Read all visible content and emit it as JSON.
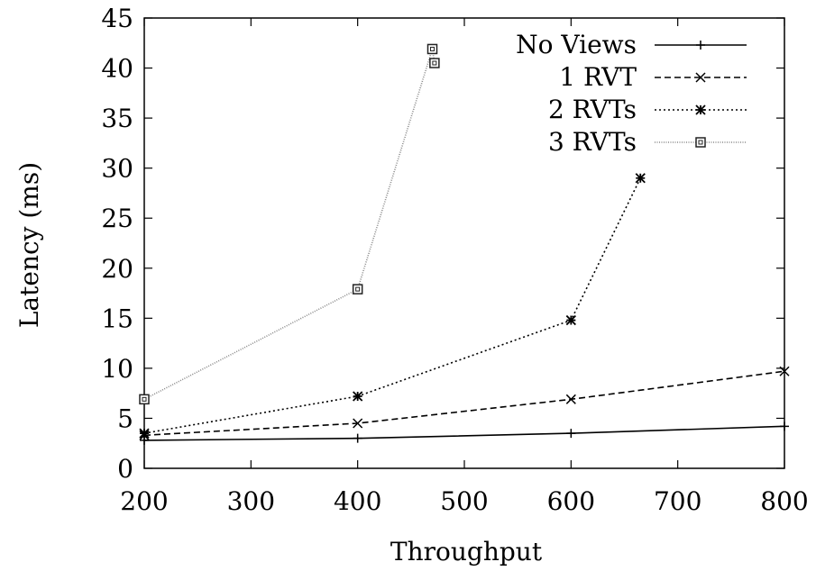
{
  "chart_data": {
    "type": "line",
    "title": "",
    "xlabel": "Throughput",
    "ylabel": "Latency (ms)",
    "xlim": [
      200,
      800
    ],
    "ylim": [
      0,
      45
    ],
    "xticks": [
      200,
      300,
      400,
      500,
      600,
      700,
      800
    ],
    "yticks": [
      0,
      5,
      10,
      15,
      20,
      25,
      30,
      35,
      40,
      45
    ],
    "grid": false,
    "legend_position": "top-right",
    "series": [
      {
        "name": "No Views",
        "marker": "plus",
        "dash": "solid",
        "color": "#000000",
        "x": [
          200,
          400,
          600,
          800
        ],
        "y": [
          2.8,
          3.0,
          3.5,
          4.2
        ]
      },
      {
        "name": "1 RVT",
        "marker": "cross",
        "dash": "dashed",
        "color": "#000000",
        "x": [
          200,
          400,
          600,
          800
        ],
        "y": [
          3.3,
          4.5,
          6.9,
          9.7
        ]
      },
      {
        "name": "2 RVTs",
        "marker": "star",
        "dash": "dotted",
        "color": "#000000",
        "x": [
          200,
          400,
          600,
          665
        ],
        "y": [
          3.5,
          7.2,
          14.8,
          29.0
        ]
      },
      {
        "name": "3 RVTs",
        "marker": "square",
        "dash": "dashdot",
        "color": "#888888",
        "x": [
          200,
          400,
          470,
          472
        ],
        "y": [
          6.9,
          17.9,
          41.9,
          40.5
        ]
      }
    ]
  }
}
